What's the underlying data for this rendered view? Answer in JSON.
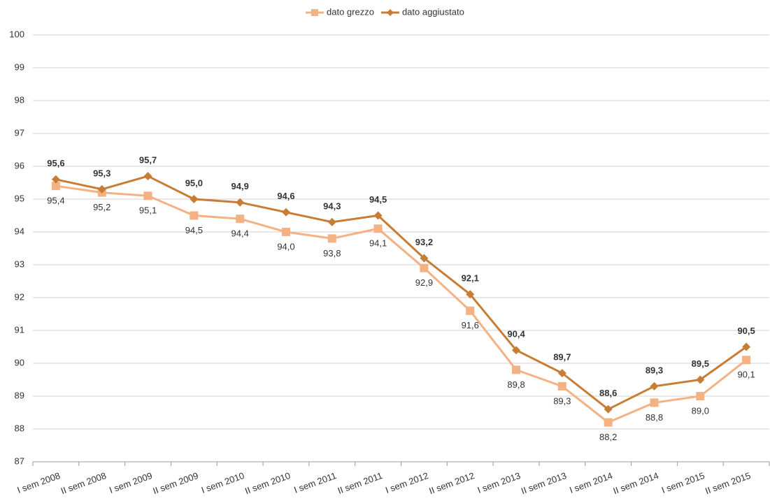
{
  "chart_data": {
    "type": "line",
    "categories": [
      "I sem 2008",
      "II sem 2008",
      "I sem 2009",
      "II sem 2009",
      "I sem 2010",
      "II sem 2010",
      "I sem 2011",
      "II sem 2011",
      "I sem 2012",
      "II sem 2012",
      "I sem 2013",
      "II sem 2013",
      "I sem 2014",
      "II sem 2014",
      "I sem 2015",
      "II sem 2015"
    ],
    "series": [
      {
        "name": "dato grezzo",
        "color": "#f4b183",
        "marker": "square",
        "values": [
          95.4,
          95.2,
          95.1,
          94.5,
          94.4,
          94.0,
          93.8,
          94.1,
          92.9,
          91.6,
          89.8,
          89.3,
          88.2,
          88.8,
          89.0,
          90.1
        ],
        "value_labels": [
          "95,4",
          "95,2",
          "95,1",
          "94,5",
          "94,4",
          "94,0",
          "93,8",
          "94,1",
          "92,9",
          "91,6",
          "89,8",
          "89,3",
          "88,2",
          "88,8",
          "89,0",
          "90,1"
        ]
      },
      {
        "name": "dato aggiustato",
        "color": "#c87d35",
        "marker": "diamond",
        "values": [
          95.6,
          95.3,
          95.7,
          95.0,
          94.9,
          94.6,
          94.3,
          94.5,
          93.2,
          92.1,
          90.4,
          89.7,
          88.6,
          89.3,
          89.5,
          90.5
        ],
        "value_labels": [
          "95,6",
          "95,3",
          "95,7",
          "95,0",
          "94,9",
          "94,6",
          "94,3",
          "94,5",
          "93,2",
          "92,1",
          "90,4",
          "89,7",
          "88,6",
          "89,3",
          "89,5",
          "90,5"
        ]
      }
    ],
    "ylim": [
      87,
      100
    ],
    "yticks": [
      87,
      88,
      89,
      90,
      91,
      92,
      93,
      94,
      95,
      96,
      97,
      98,
      99,
      100
    ],
    "grid": true,
    "legend": "top"
  }
}
